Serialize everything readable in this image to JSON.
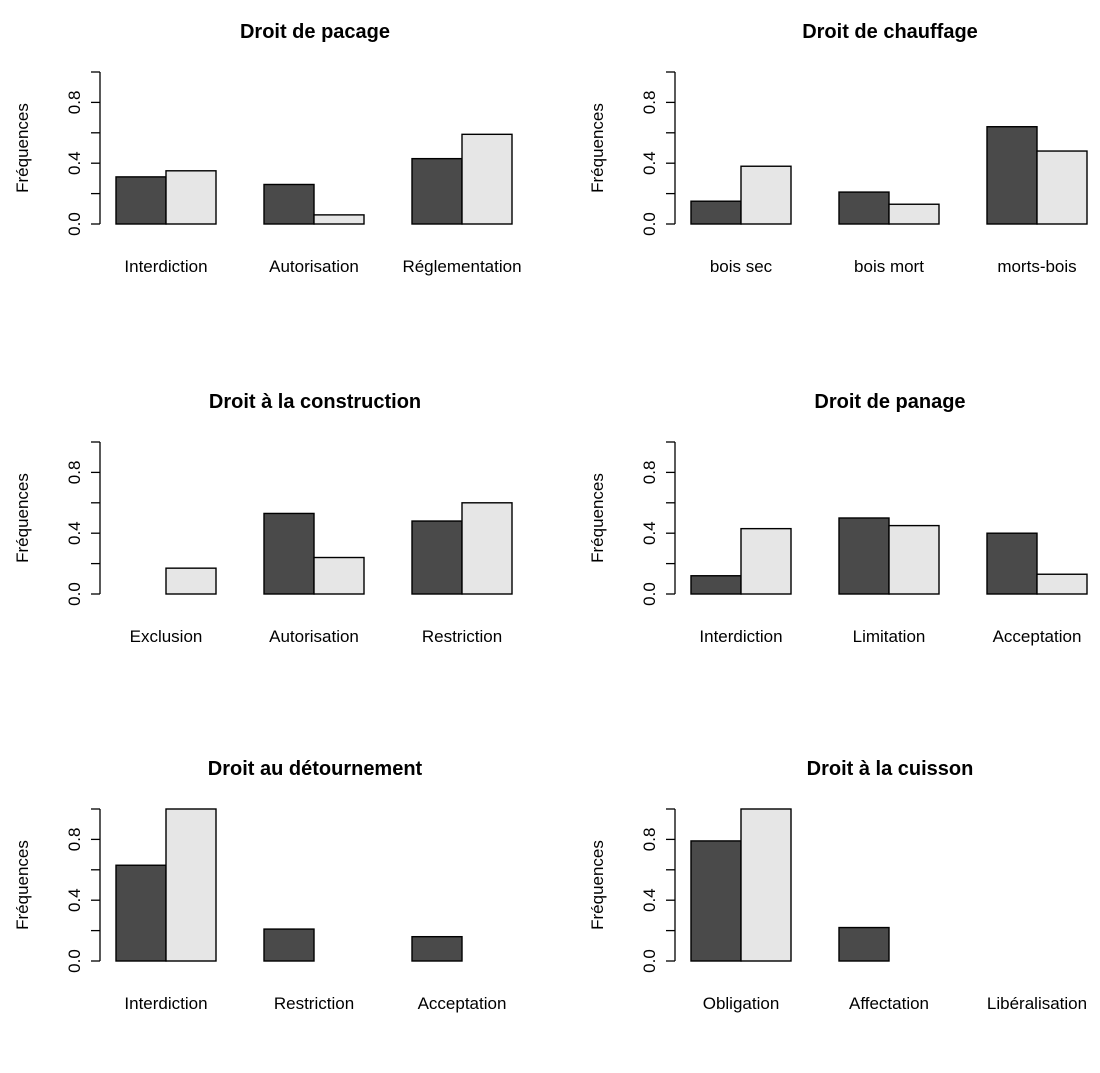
{
  "colors": {
    "series_a": "#4a4a4a",
    "series_b": "#e6e6e6",
    "outline": "#000000"
  },
  "chart_data": [
    {
      "type": "bar",
      "title": "Droit de pacage",
      "ylabel": "Fréquences",
      "ylim": [
        0,
        1
      ],
      "yticks": [
        "0.0",
        "0.4",
        "0.8"
      ],
      "categories": [
        "Interdiction",
        "Autorisation",
        "Réglementation"
      ],
      "series": [
        {
          "values": [
            0.31,
            0.26,
            0.43
          ]
        },
        {
          "values": [
            0.35,
            0.06,
            0.59
          ]
        }
      ]
    },
    {
      "type": "bar",
      "title": "Droit de chauffage",
      "ylabel": "Fréquences",
      "ylim": [
        0,
        1
      ],
      "yticks": [
        "0.0",
        "0.4",
        "0.8"
      ],
      "categories": [
        "bois sec",
        "bois mort",
        "morts-bois"
      ],
      "series": [
        {
          "values": [
            0.15,
            0.21,
            0.64
          ]
        },
        {
          "values": [
            0.38,
            0.13,
            0.48
          ]
        }
      ]
    },
    {
      "type": "bar",
      "title": "Droit à la construction",
      "ylabel": "Fréquences",
      "ylim": [
        0,
        1
      ],
      "yticks": [
        "0.0",
        "0.4",
        "0.8"
      ],
      "categories": [
        "Exclusion",
        "Autorisation",
        "Restriction"
      ],
      "series": [
        {
          "values": [
            0.0,
            0.53,
            0.48
          ]
        },
        {
          "values": [
            0.17,
            0.24,
            0.6
          ]
        }
      ]
    },
    {
      "type": "bar",
      "title": "Droit de panage",
      "ylabel": "Fréquences",
      "ylim": [
        0,
        1
      ],
      "yticks": [
        "0.0",
        "0.4",
        "0.8"
      ],
      "categories": [
        "Interdiction",
        "Limitation",
        "Acceptation"
      ],
      "series": [
        {
          "values": [
            0.12,
            0.5,
            0.4
          ]
        },
        {
          "values": [
            0.43,
            0.45,
            0.13
          ]
        }
      ]
    },
    {
      "type": "bar",
      "title": "Droit au détournement",
      "ylabel": "Fréquences",
      "ylim": [
        0,
        1
      ],
      "yticks": [
        "0.0",
        "0.4",
        "0.8"
      ],
      "categories": [
        "Interdiction",
        "Restriction",
        "Acceptation"
      ],
      "series": [
        {
          "values": [
            0.63,
            0.21,
            0.16
          ]
        },
        {
          "values": [
            1.0,
            0.0,
            0.0
          ]
        }
      ]
    },
    {
      "type": "bar",
      "title": "Droit à la cuisson",
      "ylabel": "Fréquences",
      "ylim": [
        0,
        1
      ],
      "yticks": [
        "0.0",
        "0.4",
        "0.8"
      ],
      "categories": [
        "Obligation",
        "Affectation",
        "Libéralisation"
      ],
      "series": [
        {
          "values": [
            0.79,
            0.22,
            0.0
          ]
        },
        {
          "values": [
            1.0,
            0.0,
            0.0
          ]
        }
      ]
    }
  ]
}
